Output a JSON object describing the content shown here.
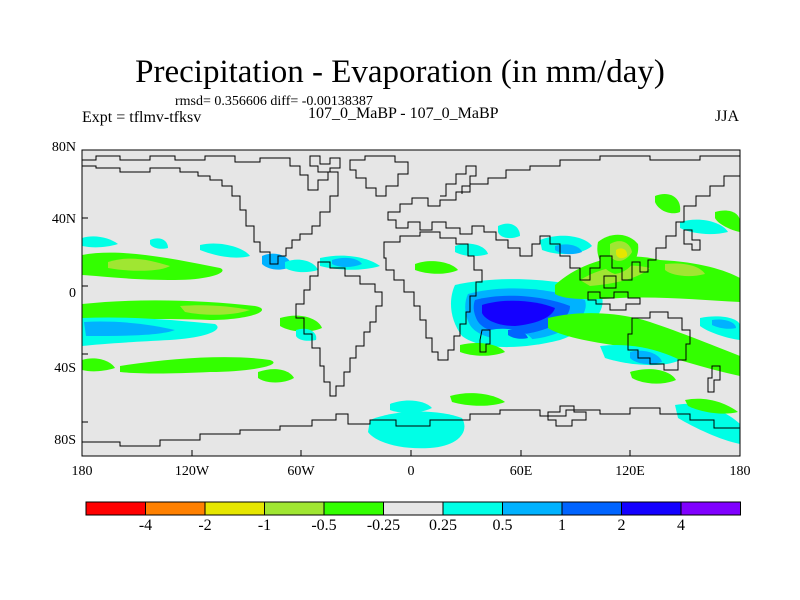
{
  "title": "Precipitation - Evaporation (in mm/day)",
  "stats_line": "rmsd= 0.356606 diff= -0.00138387",
  "expt_label": "Expt = tflmv-tfksv",
  "runs_label": "107_0_MaBP - 107_0_MaBP",
  "season": "JJA",
  "axes": {
    "x_ticks": [
      "180",
      "120W",
      "60W",
      "0",
      "60E",
      "120E",
      "180"
    ],
    "y_ticks": [
      "80N",
      "40N",
      "0",
      "40S",
      "80S"
    ]
  },
  "colorbar": {
    "labels": [
      "-4",
      "-2",
      "-1",
      "-0.5",
      "-0.25",
      "0.25",
      "0.5",
      "1",
      "2",
      "4"
    ],
    "colors": [
      "#ff0000",
      "#ff8000",
      "#e6e600",
      "#a0e632",
      "#33ff00",
      "#e6e6e6",
      "#00ffe6",
      "#00b2ff",
      "#0064ff",
      "#1400ff",
      "#8000ff"
    ]
  },
  "colors": {
    "land_ocean_neutral": "#e6e6e6",
    "coastline": "#000000"
  }
}
